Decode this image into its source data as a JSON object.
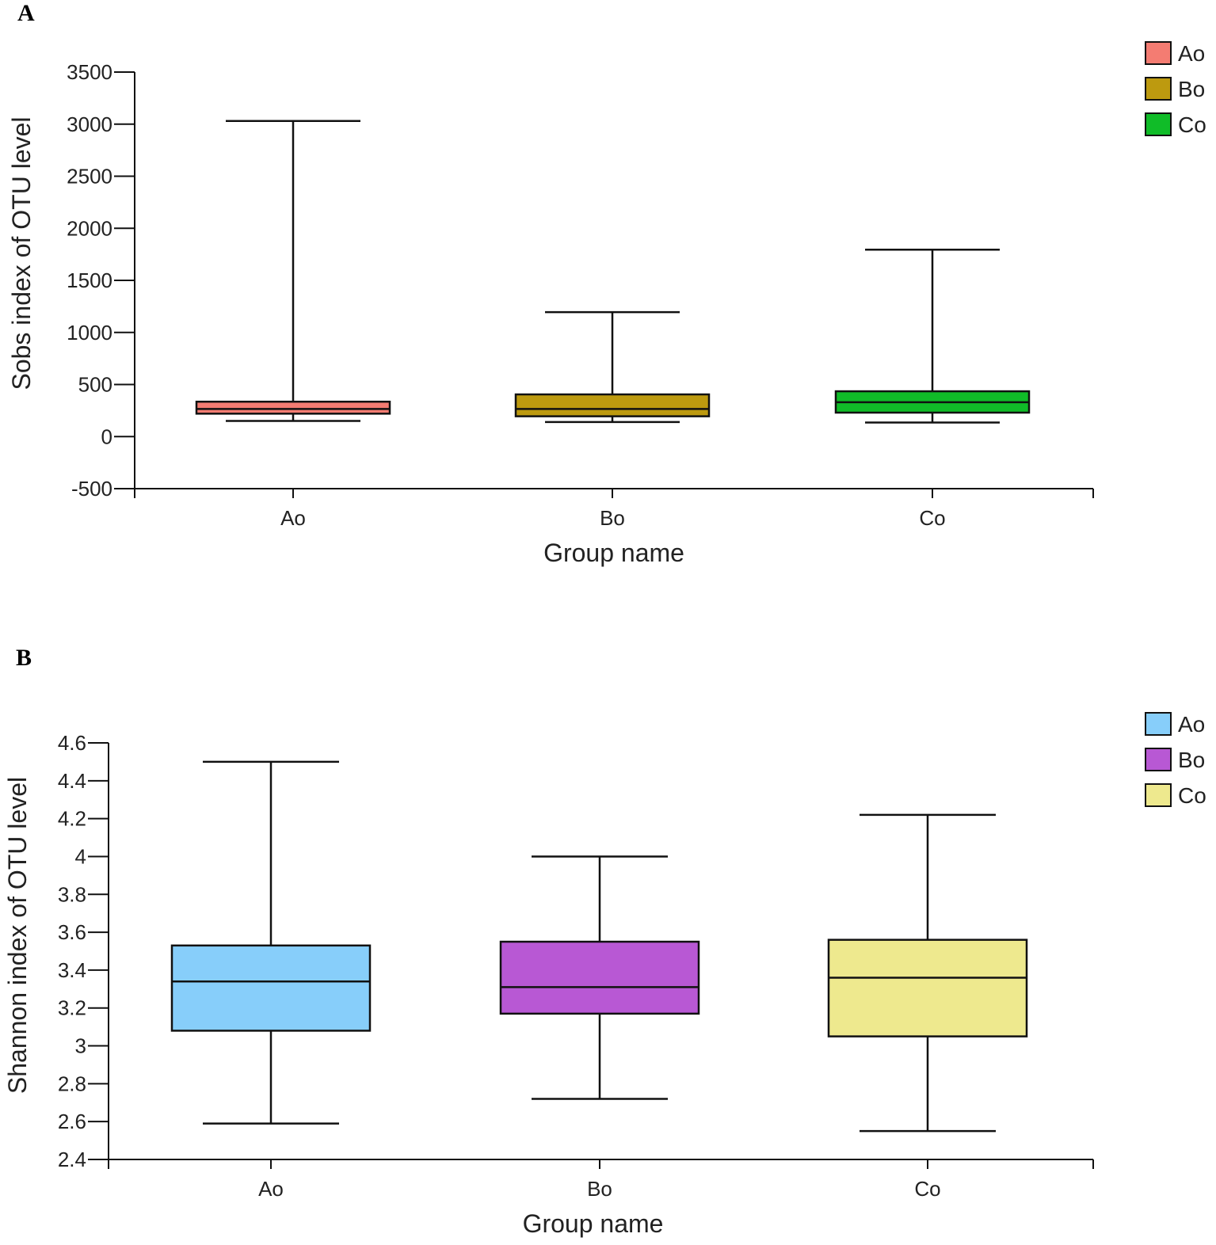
{
  "chart_data": [
    {
      "type": "box",
      "panel_label": "A",
      "title": "",
      "xlabel": "Group name",
      "ylabel": "Sobs index of OTU level",
      "ylim": [
        -500,
        3500
      ],
      "yticks": [
        3500,
        3000,
        2500,
        2000,
        1500,
        1000,
        500,
        0,
        -500
      ],
      "ytick_labels": [
        "3500",
        "3000",
        "2500",
        "2000",
        "1500",
        "1000",
        "500",
        "0",
        "-500"
      ],
      "categories": [
        "Ao",
        "Bo",
        "Co"
      ],
      "legend": [
        "Ao",
        "Bo",
        "Co"
      ],
      "legend_position": "top-right",
      "colors": [
        "#f47c72",
        "#bd9a0f",
        "#10bc28"
      ],
      "boxes": [
        {
          "name": "Ao",
          "min": 150,
          "q1": 220,
          "median": 265,
          "q3": 335,
          "max": 3030
        },
        {
          "name": "Bo",
          "min": 140,
          "q1": 195,
          "median": 265,
          "q3": 405,
          "max": 1195
        },
        {
          "name": "Co",
          "min": 135,
          "q1": 230,
          "median": 330,
          "q3": 435,
          "max": 1795
        }
      ]
    },
    {
      "type": "box",
      "panel_label": "B",
      "title": "",
      "xlabel": "Group name",
      "ylabel": "Shannon index of OTU level",
      "ylim": [
        2.4,
        4.6
      ],
      "yticks": [
        4.6,
        4.4,
        4.2,
        4.0,
        3.8,
        3.6,
        3.4,
        3.2,
        3.0,
        2.8,
        2.6,
        2.4
      ],
      "ytick_labels": [
        "4.6",
        "4.4",
        "4.2",
        "4",
        "3.8",
        "3.6",
        "3.4",
        "3.2",
        "3",
        "2.8",
        "2.6",
        "2.4"
      ],
      "categories": [
        "Ao",
        "Bo",
        "Co"
      ],
      "legend": [
        "Ao",
        "Bo",
        "Co"
      ],
      "legend_position": "top-right",
      "colors": [
        "#87cefa",
        "#b858d4",
        "#eee98e"
      ],
      "boxes": [
        {
          "name": "Ao",
          "min": 2.59,
          "q1": 3.08,
          "median": 3.34,
          "q3": 3.53,
          "max": 4.5
        },
        {
          "name": "Bo",
          "min": 2.72,
          "q1": 3.17,
          "median": 3.31,
          "q3": 3.55,
          "max": 4.0
        },
        {
          "name": "Co",
          "min": 2.55,
          "q1": 3.05,
          "median": 3.36,
          "q3": 3.56,
          "max": 4.22
        }
      ]
    }
  ]
}
